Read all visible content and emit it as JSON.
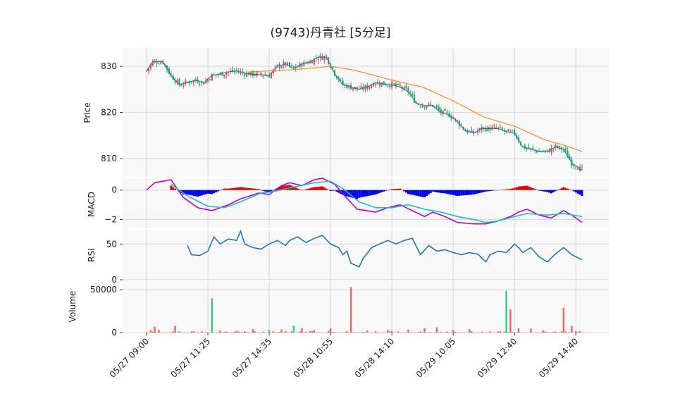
{
  "chart_data": {
    "type": "candlestick",
    "title": "(9743)丹青社  [5分足]",
    "colors": {
      "up": "#ef4b4b",
      "down": "#26a96c",
      "price_line": "#1f77b4",
      "ma_line": "#ff7f0e",
      "macd_line": "#c000c0",
      "signal_line": "#17becf",
      "hist_pos": "#e00000",
      "hist_neg": "#0000e6",
      "rsi_line": "#1f77b4"
    },
    "x_ticks": [
      "05/27 09:00",
      "05/27 11:25",
      "05/27 14:35",
      "05/28 10:55",
      "05/28 14:10",
      "05/29 10:05",
      "05/29 12:40",
      "05/29 14:40"
    ],
    "x_tick_index": [
      0,
      30,
      60,
      90,
      120,
      150,
      180,
      210
    ],
    "n_bars": 214,
    "panels": {
      "price": {
        "ylabel": "Price",
        "ylim": [
          806,
          834
        ],
        "ticks": [
          810,
          820,
          830
        ]
      },
      "macd": {
        "ylabel": "MACD",
        "ylim": [
          -2.6,
          0.8
        ],
        "ticks": [
          0,
          -2
        ],
        "tick_labels": [
          "0",
          "−2"
        ]
      },
      "rsi": {
        "ylabel": "RSI",
        "ylim": [
          0,
          70
        ],
        "ticks": [
          0,
          50
        ]
      },
      "volume": {
        "ylabel": "Volume",
        "ylim": [
          0,
          60000
        ],
        "ticks": [
          0,
          50000
        ]
      }
    },
    "price_anchors": [
      [
        0,
        829
      ],
      [
        3,
        831
      ],
      [
        8,
        831
      ],
      [
        12,
        828
      ],
      [
        16,
        826
      ],
      [
        20,
        826.5
      ],
      [
        24,
        827
      ],
      [
        28,
        826.5
      ],
      [
        32,
        828
      ],
      [
        36,
        828.3
      ],
      [
        40,
        828.8
      ],
      [
        44,
        829
      ],
      [
        48,
        828.5
      ],
      [
        52,
        828.3
      ],
      [
        56,
        828.2
      ],
      [
        60,
        828
      ],
      [
        64,
        830
      ],
      [
        68,
        830.5
      ],
      [
        72,
        829.5
      ],
      [
        76,
        830.5
      ],
      [
        80,
        831
      ],
      [
        84,
        832
      ],
      [
        88,
        832
      ],
      [
        92,
        828.5
      ],
      [
        96,
        826
      ],
      [
        100,
        825.5
      ],
      [
        104,
        825
      ],
      [
        108,
        825.5
      ],
      [
        112,
        826.5
      ],
      [
        116,
        826.2
      ],
      [
        120,
        826
      ],
      [
        124,
        825.5
      ],
      [
        128,
        824.5
      ],
      [
        132,
        822
      ],
      [
        136,
        821.5
      ],
      [
        140,
        821.5
      ],
      [
        144,
        820
      ],
      [
        148,
        819.5
      ],
      [
        152,
        818
      ],
      [
        156,
        816
      ],
      [
        160,
        815.5
      ],
      [
        164,
        816.5
      ],
      [
        168,
        816.5
      ],
      [
        172,
        816.5
      ],
      [
        176,
        815.8
      ],
      [
        180,
        815.5
      ],
      [
        184,
        812.5
      ],
      [
        188,
        812
      ],
      [
        192,
        811.5
      ],
      [
        196,
        811.5
      ],
      [
        200,
        812.5
      ],
      [
        204,
        812
      ],
      [
        208,
        809
      ],
      [
        213,
        807.5
      ]
    ],
    "ma_anchors": [
      [
        50,
        828.8
      ],
      [
        70,
        829.2
      ],
      [
        90,
        830
      ],
      [
        100,
        829.3
      ],
      [
        110,
        828.2
      ],
      [
        120,
        827
      ],
      [
        135,
        825.5
      ],
      [
        150,
        822.5
      ],
      [
        165,
        819
      ],
      [
        180,
        817
      ],
      [
        195,
        814
      ],
      [
        205,
        812.8
      ],
      [
        213,
        811.5
      ]
    ],
    "macd_anchors": [
      [
        0,
        0
      ],
      [
        4,
        0.5
      ],
      [
        12,
        0.7
      ],
      [
        18,
        -0.5
      ],
      [
        25,
        -1.2
      ],
      [
        32,
        -1.4
      ],
      [
        40,
        -1
      ],
      [
        46,
        -0.6
      ],
      [
        55,
        -0.2
      ],
      [
        60,
        -0.3
      ],
      [
        66,
        0.3
      ],
      [
        70,
        0.5
      ],
      [
        76,
        0.3
      ],
      [
        82,
        0.7
      ],
      [
        86,
        0.8
      ],
      [
        92,
        0.4
      ],
      [
        97,
        -0.4
      ],
      [
        103,
        -1.3
      ],
      [
        112,
        -1.5
      ],
      [
        118,
        -1.2
      ],
      [
        124,
        -1
      ],
      [
        130,
        -1.4
      ],
      [
        136,
        -1.8
      ],
      [
        140,
        -1.5
      ],
      [
        146,
        -1.8
      ],
      [
        152,
        -2.2
      ],
      [
        160,
        -2.3
      ],
      [
        166,
        -2.3
      ],
      [
        172,
        -2.1
      ],
      [
        178,
        -1.8
      ],
      [
        182,
        -1.5
      ],
      [
        186,
        -1.3
      ],
      [
        192,
        -1.7
      ],
      [
        198,
        -1.9
      ],
      [
        204,
        -1.4
      ],
      [
        208,
        -1.7
      ],
      [
        213,
        -2.2
      ]
    ],
    "signal_anchors": [
      [
        12,
        0.4
      ],
      [
        20,
        -0.4
      ],
      [
        30,
        -1.1
      ],
      [
        38,
        -1.2
      ],
      [
        46,
        -0.8
      ],
      [
        56,
        -0.2
      ],
      [
        62,
        -0.1
      ],
      [
        72,
        0.2
      ],
      [
        82,
        0.5
      ],
      [
        90,
        0.6
      ],
      [
        96,
        0.1
      ],
      [
        104,
        -0.8
      ],
      [
        112,
        -1.2
      ],
      [
        120,
        -1.2
      ],
      [
        128,
        -1
      ],
      [
        136,
        -1.3
      ],
      [
        144,
        -1.5
      ],
      [
        152,
        -1.8
      ],
      [
        160,
        -2
      ],
      [
        166,
        -2.2
      ],
      [
        172,
        -2.1
      ],
      [
        180,
        -1.8
      ],
      [
        186,
        -1.6
      ],
      [
        196,
        -1.7
      ],
      [
        204,
        -1.6
      ],
      [
        213,
        -1.8
      ]
    ],
    "rsi_anchors": [
      [
        20,
        48
      ],
      [
        22,
        35
      ],
      [
        26,
        34
      ],
      [
        30,
        40
      ],
      [
        33,
        60
      ],
      [
        36,
        50
      ],
      [
        40,
        57
      ],
      [
        44,
        55
      ],
      [
        46,
        68
      ],
      [
        48,
        50
      ],
      [
        52,
        45
      ],
      [
        56,
        43
      ],
      [
        60,
        50
      ],
      [
        64,
        55
      ],
      [
        68,
        48
      ],
      [
        70,
        55
      ],
      [
        74,
        60
      ],
      [
        78,
        52
      ],
      [
        82,
        58
      ],
      [
        86,
        62
      ],
      [
        90,
        50
      ],
      [
        94,
        45
      ],
      [
        96,
        35
      ],
      [
        98,
        40
      ],
      [
        100,
        23
      ],
      [
        104,
        18
      ],
      [
        106,
        30
      ],
      [
        110,
        45
      ],
      [
        114,
        50
      ],
      [
        118,
        55
      ],
      [
        122,
        50
      ],
      [
        126,
        55
      ],
      [
        130,
        58
      ],
      [
        134,
        35
      ],
      [
        138,
        48
      ],
      [
        142,
        40
      ],
      [
        146,
        42
      ],
      [
        150,
        38
      ],
      [
        154,
        35
      ],
      [
        158,
        38
      ],
      [
        162,
        36
      ],
      [
        166,
        25
      ],
      [
        168,
        35
      ],
      [
        172,
        40
      ],
      [
        176,
        38
      ],
      [
        180,
        50
      ],
      [
        182,
        45
      ],
      [
        184,
        38
      ],
      [
        188,
        45
      ],
      [
        192,
        32
      ],
      [
        196,
        25
      ],
      [
        200,
        36
      ],
      [
        204,
        45
      ],
      [
        208,
        35
      ],
      [
        213,
        28
      ]
    ],
    "volume_spikes": [
      [
        2,
        3000
      ],
      [
        4,
        7000
      ],
      [
        6,
        3000
      ],
      [
        14,
        8000
      ],
      [
        22,
        1500
      ],
      [
        32,
        40000
      ],
      [
        36,
        2500
      ],
      [
        44,
        2000
      ],
      [
        52,
        4000
      ],
      [
        60,
        3000
      ],
      [
        66,
        3500
      ],
      [
        72,
        8000
      ],
      [
        76,
        5000
      ],
      [
        82,
        3000
      ],
      [
        90,
        5000
      ],
      [
        100,
        53000
      ],
      [
        108,
        2500
      ],
      [
        118,
        3000
      ],
      [
        128,
        3500
      ],
      [
        136,
        5000
      ],
      [
        142,
        6000
      ],
      [
        150,
        3000
      ],
      [
        158,
        4000
      ],
      [
        176,
        49000
      ],
      [
        178,
        27000
      ],
      [
        182,
        5000
      ],
      [
        188,
        4500
      ],
      [
        194,
        2500
      ],
      [
        204,
        29000
      ],
      [
        208,
        8000
      ]
    ],
    "volume_green_idx": [
      32,
      60,
      72,
      176
    ]
  }
}
